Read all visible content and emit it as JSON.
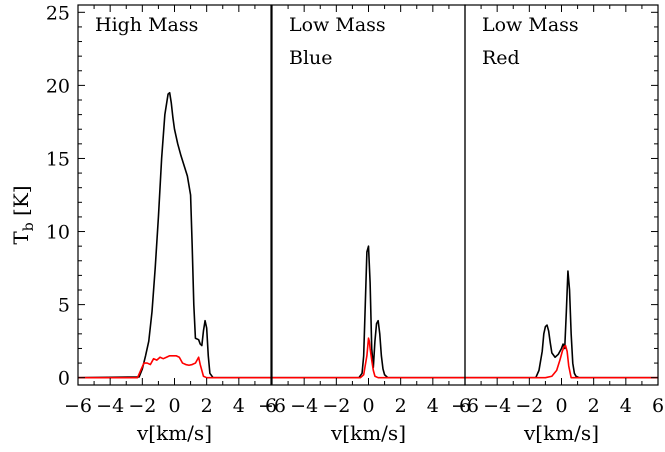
{
  "chart_data": {
    "type": "line",
    "ylabel_main": "T",
    "ylabel_sub": "b",
    "ylabel_unit": "[K]",
    "ylim": [
      -0.5,
      25.5
    ],
    "yticks": [
      0,
      5,
      10,
      15,
      20,
      25
    ],
    "xlim": [
      -6,
      6
    ],
    "xticks": [
      -6,
      -4,
      -2,
      0,
      2,
      4,
      6
    ],
    "xtick_labels": [
      "−6",
      "−4",
      "−2",
      "0",
      "2",
      "4",
      "6"
    ],
    "grid": false,
    "series_colors": [
      "#000000",
      "#ff0000"
    ],
    "panels": [
      {
        "label_lines": [
          "High Mass"
        ],
        "xlabel": "v[km/s]",
        "series": [
          {
            "x": [
              -6,
              -2.2,
              -2.0,
              -1.8,
              -1.6,
              -1.4,
              -1.2,
              -1.0,
              -0.8,
              -0.6,
              -0.4,
              -0.3,
              -0.2,
              -0.1,
              0.0,
              0.2,
              0.4,
              0.6,
              0.8,
              1.0,
              1.1,
              1.2,
              1.3,
              1.5,
              1.6,
              1.7,
              1.8,
              1.9,
              2.0,
              2.1,
              2.2,
              2.4,
              6
            ],
            "y": [
              0,
              0.05,
              0.6,
              1.5,
              2.5,
              4.5,
              7.5,
              11.0,
              15.0,
              18.0,
              19.4,
              19.5,
              18.8,
              17.8,
              17.0,
              16.0,
              15.2,
              14.5,
              13.8,
              12.5,
              9.0,
              5.0,
              2.7,
              2.6,
              2.3,
              2.2,
              3.2,
              3.9,
              3.4,
              1.5,
              0.3,
              0.0,
              0
            ]
          },
          {
            "x": [
              -6,
              -2.3,
              -2.1,
              -1.9,
              -1.7,
              -1.5,
              -1.3,
              -1.1,
              -0.9,
              -0.7,
              -0.5,
              -0.3,
              -0.1,
              0.1,
              0.3,
              0.5,
              0.7,
              0.9,
              1.1,
              1.3,
              1.5,
              1.6,
              1.8,
              2.0,
              6
            ],
            "y": [
              0,
              0.0,
              0.5,
              1.0,
              1.0,
              0.9,
              1.3,
              1.2,
              1.4,
              1.3,
              1.4,
              1.5,
              1.5,
              1.5,
              1.4,
              1.0,
              0.9,
              0.85,
              0.9,
              1.0,
              1.4,
              0.9,
              0.1,
              0.0,
              0
            ]
          }
        ]
      },
      {
        "label_lines": [
          "Low Mass",
          "Blue"
        ],
        "xlabel": "v[km/s]",
        "series": [
          {
            "x": [
              -6,
              -0.6,
              -0.4,
              -0.3,
              -0.2,
              -0.1,
              0.0,
              0.1,
              0.2,
              0.3,
              0.4,
              0.5,
              0.6,
              0.7,
              0.8,
              0.9,
              1.0,
              1.2,
              6
            ],
            "y": [
              0,
              0.0,
              0.3,
              1.5,
              5.0,
              8.6,
              9.0,
              6.5,
              2.0,
              0.7,
              2.5,
              3.7,
              3.9,
              3.0,
              1.5,
              0.6,
              0.2,
              0.0,
              0
            ]
          },
          {
            "x": [
              -6,
              -0.5,
              -0.3,
              -0.1,
              0.0,
              0.05,
              0.1,
              0.2,
              0.3,
              0.4,
              0.6,
              6
            ],
            "y": [
              0,
              0.0,
              0.2,
              1.5,
              2.7,
              2.5,
              2.0,
              1.2,
              0.5,
              0.1,
              0.0,
              0
            ]
          }
        ]
      },
      {
        "label_lines": [
          "Low Mass",
          "Red"
        ],
        "xlabel": "v[km/s]",
        "series": [
          {
            "x": [
              -6,
              -1.6,
              -1.4,
              -1.2,
              -1.1,
              -1.0,
              -0.9,
              -0.8,
              -0.7,
              -0.6,
              -0.4,
              -0.2,
              0.0,
              0.1,
              0.2,
              0.3,
              0.4,
              0.5,
              0.6,
              0.7,
              0.8,
              0.9,
              1.1,
              6
            ],
            "y": [
              0,
              0.0,
              0.5,
              1.8,
              3.0,
              3.5,
              3.6,
              3.2,
              2.4,
              1.7,
              1.4,
              1.6,
              2.0,
              2.3,
              2.0,
              4.5,
              7.3,
              6.0,
              3.0,
              1.0,
              0.3,
              0.1,
              0.0,
              0
            ]
          },
          {
            "x": [
              -6,
              -1.0,
              -0.6,
              -0.3,
              -0.1,
              0.05,
              0.15,
              0.25,
              0.35,
              0.45,
              0.6,
              6
            ],
            "y": [
              0,
              0.0,
              0.1,
              0.5,
              1.2,
              1.8,
              2.1,
              2.2,
              1.8,
              0.8,
              0.0,
              0
            ]
          }
        ]
      }
    ]
  }
}
